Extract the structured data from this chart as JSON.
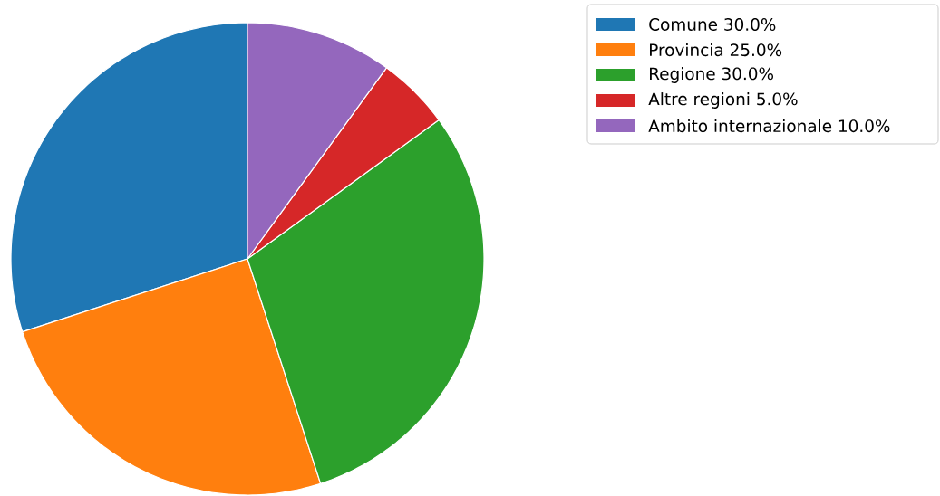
{
  "chart_data": {
    "type": "pie",
    "categories": [
      "Comune 30.0%",
      "Provincia 25.0%",
      "Regione 30.0%",
      "Altre regioni 5.0%",
      "Ambito internazionale 10.0%"
    ],
    "values": [
      30,
      25,
      30,
      5,
      10
    ],
    "colors": [
      "#1f77b4",
      "#ff7f0e",
      "#2ca02c",
      "#d62728",
      "#9467bd"
    ],
    "legend": "top right"
  }
}
